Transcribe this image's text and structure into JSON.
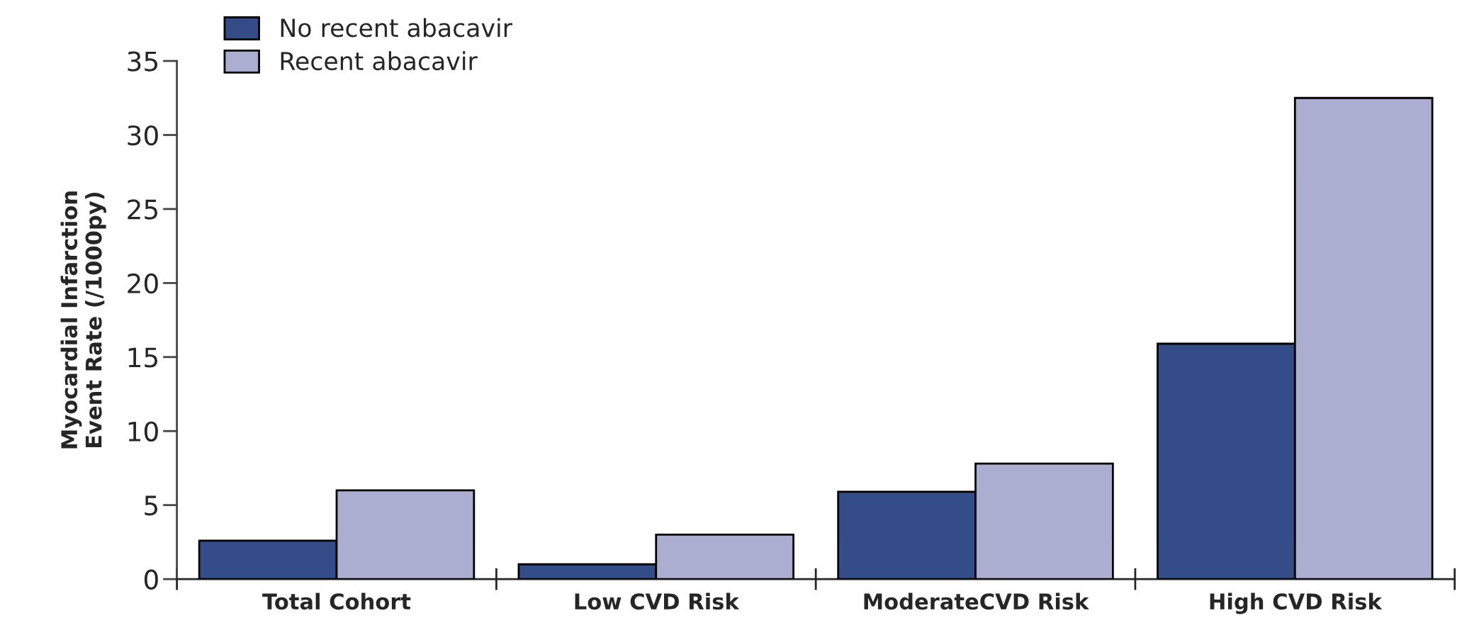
{
  "chart_data": {
    "type": "bar",
    "ylabel": "Myocardial Infarction\nEvent Rate (/1000py)",
    "categories": [
      "Total Cohort",
      "Low CVD Risk",
      "ModerateCVD Risk",
      "High CVD Risk"
    ],
    "series": [
      {
        "name": "No recent abacavir",
        "color": "#344c88",
        "values": [
          2.6,
          1.0,
          5.9,
          15.9
        ]
      },
      {
        "name": "Recent abacavir",
        "color": "#abaed1",
        "values": [
          6.0,
          3.0,
          7.8,
          32.5
        ]
      }
    ],
    "ylim": [
      0,
      35
    ],
    "yticks": [
      0,
      5,
      10,
      15,
      20,
      25,
      30,
      35
    ],
    "grid": false,
    "legend": "top left"
  }
}
